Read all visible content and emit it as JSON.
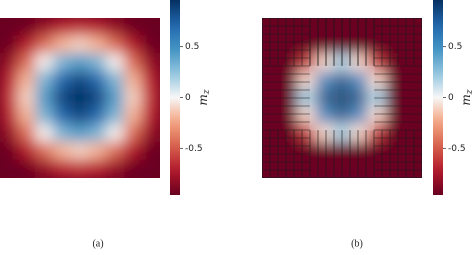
{
  "chart_data": [
    {
      "type": "heatmap",
      "caption": "(a)",
      "colormap": "RdBu",
      "mesh": false,
      "colorbar_label": {
        "text": "m",
        "subscript": "z"
      },
      "zlim": [
        -0.96,
        0.96
      ],
      "zticks": [
        0.5,
        0,
        -0.5
      ],
      "values": [
        [
          -0.95,
          -0.94,
          -0.81,
          -0.68,
          -0.62,
          -0.68,
          -0.81,
          -0.94,
          -0.95
        ],
        [
          -0.94,
          -0.72,
          -0.44,
          -0.2,
          -0.11,
          -0.2,
          -0.44,
          -0.72,
          -0.94
        ],
        [
          -0.81,
          -0.44,
          -0.02,
          0.31,
          0.43,
          0.31,
          -0.02,
          -0.44,
          -0.81
        ],
        [
          -0.68,
          -0.2,
          0.31,
          0.7,
          0.85,
          0.7,
          0.31,
          -0.2,
          -0.68
        ],
        [
          -0.62,
          -0.11,
          0.43,
          0.85,
          0.95,
          0.85,
          0.43,
          -0.11,
          -0.62
        ],
        [
          -0.68,
          -0.2,
          0.31,
          0.7,
          0.85,
          0.7,
          0.31,
          -0.2,
          -0.68
        ],
        [
          -0.81,
          -0.44,
          -0.02,
          0.31,
          0.43,
          0.31,
          -0.02,
          -0.44,
          -0.81
        ],
        [
          -0.94,
          -0.72,
          -0.44,
          -0.2,
          -0.11,
          -0.2,
          -0.44,
          -0.72,
          -0.94
        ],
        [
          -0.95,
          -0.94,
          -0.81,
          -0.68,
          -0.62,
          -0.68,
          -0.81,
          -0.94,
          -0.95
        ]
      ]
    },
    {
      "type": "heatmap",
      "caption": "(b)",
      "colormap": "RdBu",
      "mesh": true,
      "colorbar_label": {
        "text": "m",
        "subscript": "z"
      },
      "zlim": [
        -0.96,
        0.96
      ],
      "zticks": [
        0.5,
        0,
        -0.5
      ],
      "values": [
        [
          -0.95,
          -0.95,
          -0.95,
          -0.95,
          -0.95,
          -0.95,
          -0.95,
          -0.95,
          -0.95
        ],
        [
          -0.95,
          -0.95,
          -0.95,
          -0.95,
          -0.95,
          -0.95,
          -0.95,
          -0.95,
          -0.95
        ],
        [
          -0.95,
          -0.95,
          -0.6,
          -0.1,
          0.2,
          -0.1,
          -0.6,
          -0.95,
          -0.95
        ],
        [
          -0.95,
          -0.95,
          -0.1,
          0.6,
          0.85,
          0.6,
          -0.1,
          -0.95,
          -0.95
        ],
        [
          -0.95,
          -0.95,
          0.2,
          0.85,
          0.95,
          0.85,
          0.2,
          -0.95,
          -0.95
        ],
        [
          -0.95,
          -0.95,
          -0.1,
          0.6,
          0.85,
          0.6,
          -0.1,
          -0.95,
          -0.95
        ],
        [
          -0.95,
          -0.95,
          -0.6,
          -0.1,
          0.2,
          -0.1,
          -0.6,
          -0.95,
          -0.95
        ],
        [
          -0.95,
          -0.95,
          -0.95,
          -0.95,
          -0.95,
          -0.95,
          -0.95,
          -0.95,
          -0.95
        ],
        [
          -0.95,
          -0.95,
          -0.95,
          -0.95,
          -0.95,
          -0.95,
          -0.95,
          -0.95,
          -0.95
        ]
      ]
    }
  ]
}
